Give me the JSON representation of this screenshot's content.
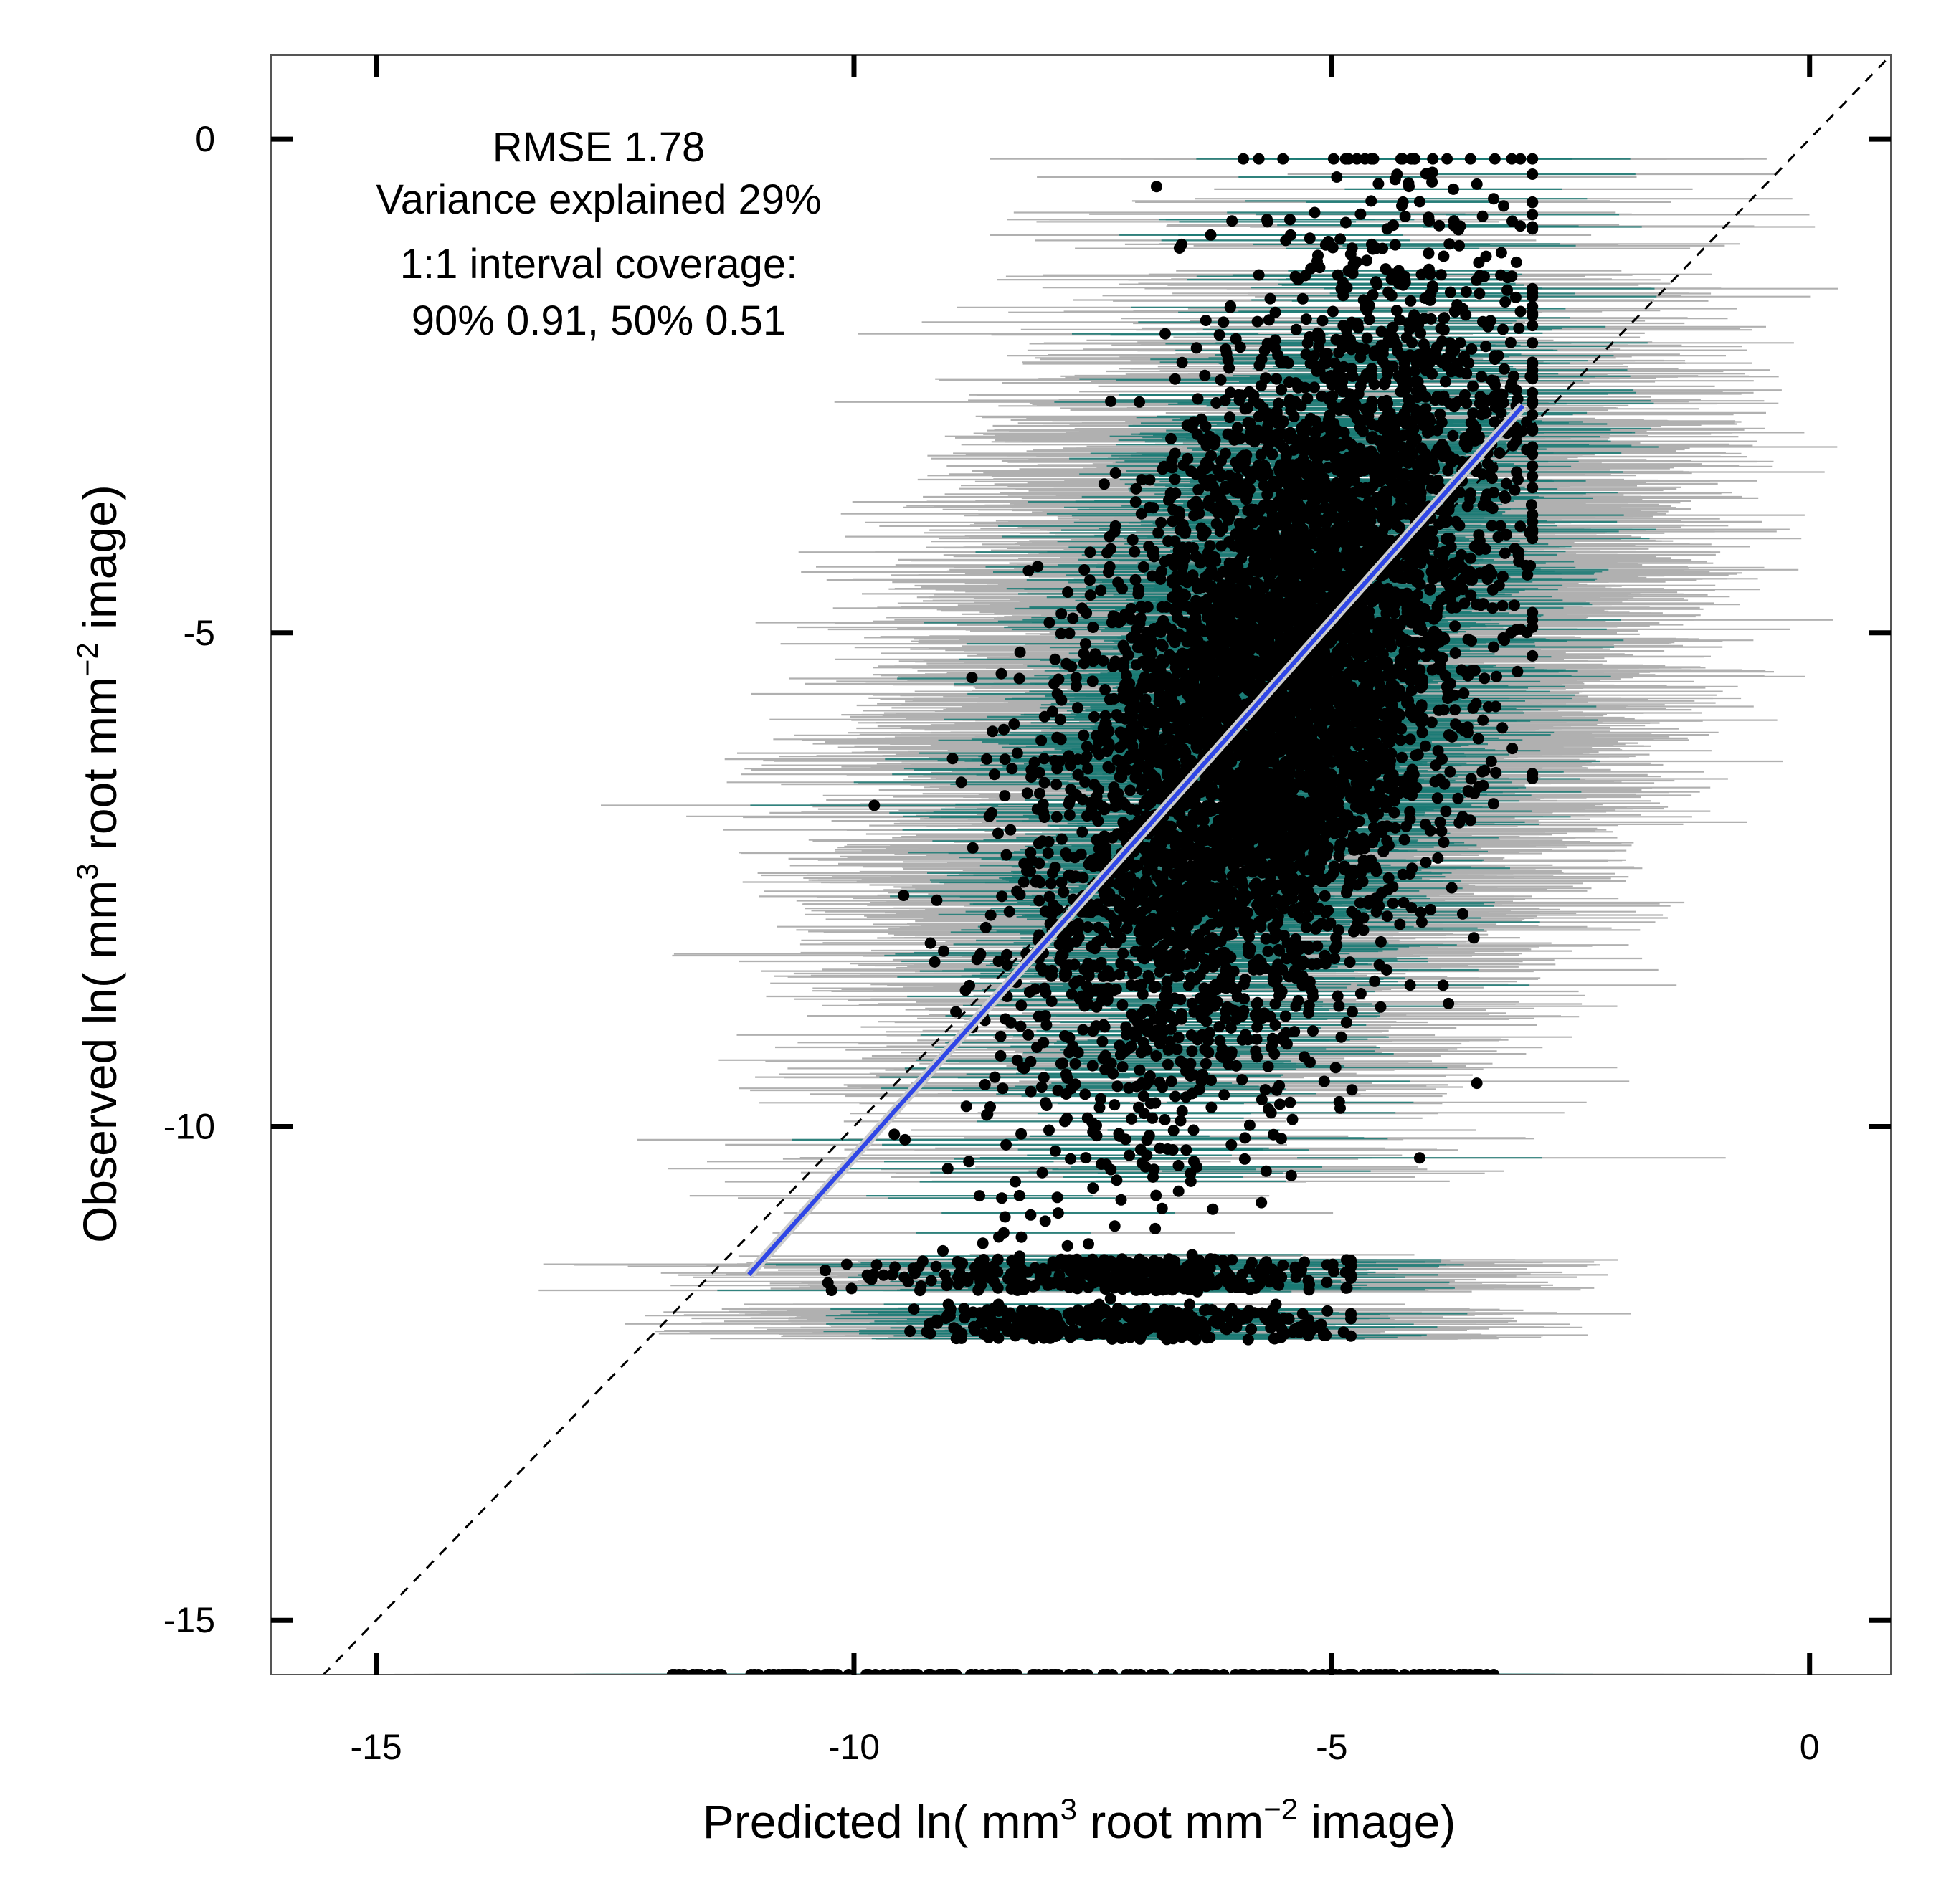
{
  "chart_data": {
    "type": "scatter",
    "title": "",
    "xlabel": {
      "pre": "Predicted ln( mm",
      "sup1": "3",
      "mid": " root mm",
      "sup2": "−2",
      "post": " image)"
    },
    "ylabel": {
      "pre": "Observed ln( mm",
      "sup1": "3",
      "mid": " root mm",
      "sup2": "−2",
      "post": " image)"
    },
    "xlim": [
      -16.1,
      0.85
    ],
    "ylim": [
      -15.55,
      0.85
    ],
    "xticks": [
      -15,
      -10,
      -5,
      0
    ],
    "yticks": [
      0,
      -5,
      -10,
      -15
    ],
    "xtick_labels": [
      "-15",
      "-10",
      "-5",
      "0"
    ],
    "ytick_labels": [
      "0",
      "-5",
      "-10",
      "-15"
    ],
    "annotations": [
      "RMSE 1.78",
      "Variance explained 29%",
      "1:1 interval coverage:",
      "90% 0.91, 50% 0.51"
    ],
    "reference_line": {
      "type": "1:1",
      "style": "dashed",
      "color": "#000000"
    },
    "fit_line": {
      "x": [
        -11.1,
        -3.0
      ],
      "y": [
        -11.5,
        -2.7
      ],
      "color": "#2f46e6"
    },
    "point_cloud": {
      "n_points": 6000,
      "center": {
        "x": -5.6,
        "y": -5.6
      },
      "x_range": [
        -11.2,
        -2.9
      ],
      "y_range": [
        -12.6,
        -0.2
      ],
      "censored_levels": [
        -11.5,
        -12.0
      ],
      "floor_level": -15.55
    },
    "intervals": {
      "pi90_color": "#b0b0b0",
      "pi50_color": "#1a7a74",
      "pi90_halfwidth": 2.7,
      "pi50_halfwidth": 1.1
    },
    "colors": {
      "points": "#000000",
      "fit": "#2f46e6",
      "frame": "#555555"
    }
  }
}
